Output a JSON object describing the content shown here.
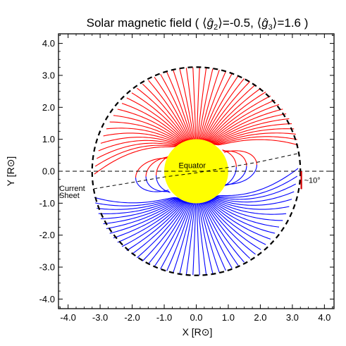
{
  "chart_data": {
    "type": "line",
    "title": {
      "prefix": "Solar magnetic field ( ",
      "g2_symbol": "ĝ",
      "g2_sub": "2",
      "g2_value": "=-0.5, ",
      "g3_symbol": "ĝ",
      "g3_sub": "3",
      "g3_value": "=1.6 )"
    },
    "xlabel": "X [R⊙]",
    "ylabel": "Y [R⊙]",
    "xlim": [
      -4.3,
      4.3
    ],
    "ylim": [
      -4.3,
      4.3
    ],
    "xticks": [
      "-4.0",
      "-3.0",
      "-2.0",
      "-1.0",
      "0.0",
      "1.0",
      "2.0",
      "3.0",
      "4.0"
    ],
    "yticks": [
      "-4.0",
      "-3.0",
      "-2.0",
      "-1.0",
      "0.0",
      "1.0",
      "2.0",
      "3.0",
      "4.0"
    ],
    "sun": {
      "center": [
        0,
        0
      ],
      "radius": 1.0,
      "color": "#ffff00"
    },
    "source_surface": {
      "radius": 3.25,
      "style": "dashed",
      "color": "#000000"
    },
    "equator_line": {
      "y": 0.0,
      "label": "Equator",
      "label_position": [
        -0.55,
        0.1
      ]
    },
    "current_sheet": {
      "label": [
        "Current",
        "Sheet"
      ],
      "tilt_deg": 10,
      "points": [
        [
          -3.2,
          -0.55
        ],
        [
          -2.0,
          -0.35
        ],
        [
          -1.0,
          -0.18
        ],
        [
          0.0,
          -0.05
        ],
        [
          1.0,
          0.12
        ],
        [
          2.0,
          0.3
        ],
        [
          3.2,
          0.56
        ]
      ]
    },
    "angle_annotation": {
      "label": "~10°",
      "arc_x": 3.28,
      "arc_y_range": [
        0.0,
        -0.56
      ]
    },
    "series": [
      {
        "polarity": "north",
        "color": "#ff0000",
        "open_lines": 46,
        "closed_loops": 6
      },
      {
        "polarity": "south",
        "color": "#0000ff",
        "open_lines": 46,
        "closed_loops": 6
      }
    ],
    "grid": false
  }
}
